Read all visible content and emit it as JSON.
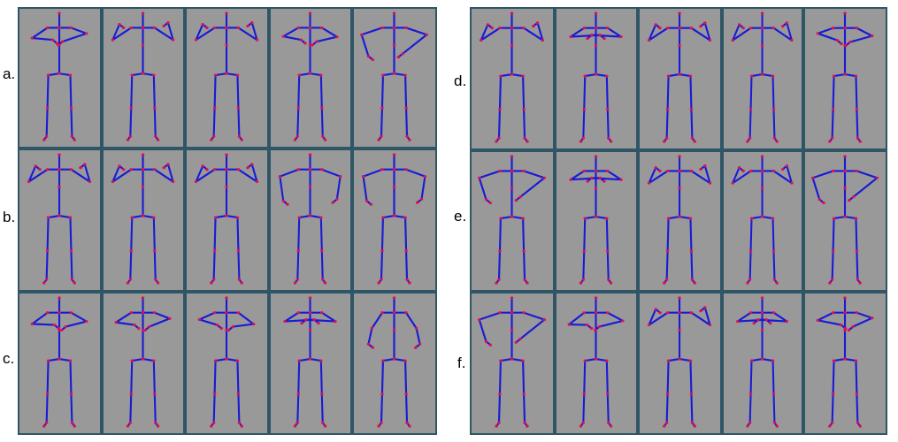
{
  "row_labels": {
    "a": "a.",
    "b": "b.",
    "c": "c.",
    "d": "d.",
    "e": "e.",
    "f": "f."
  },
  "colors": {
    "panel_background": "#999999",
    "panel_border": "#2f5666",
    "bone": "#1a1ad6",
    "joint": "#e0104f"
  },
  "icons": {
    "figure": "skeleton-figure-icon"
  }
}
